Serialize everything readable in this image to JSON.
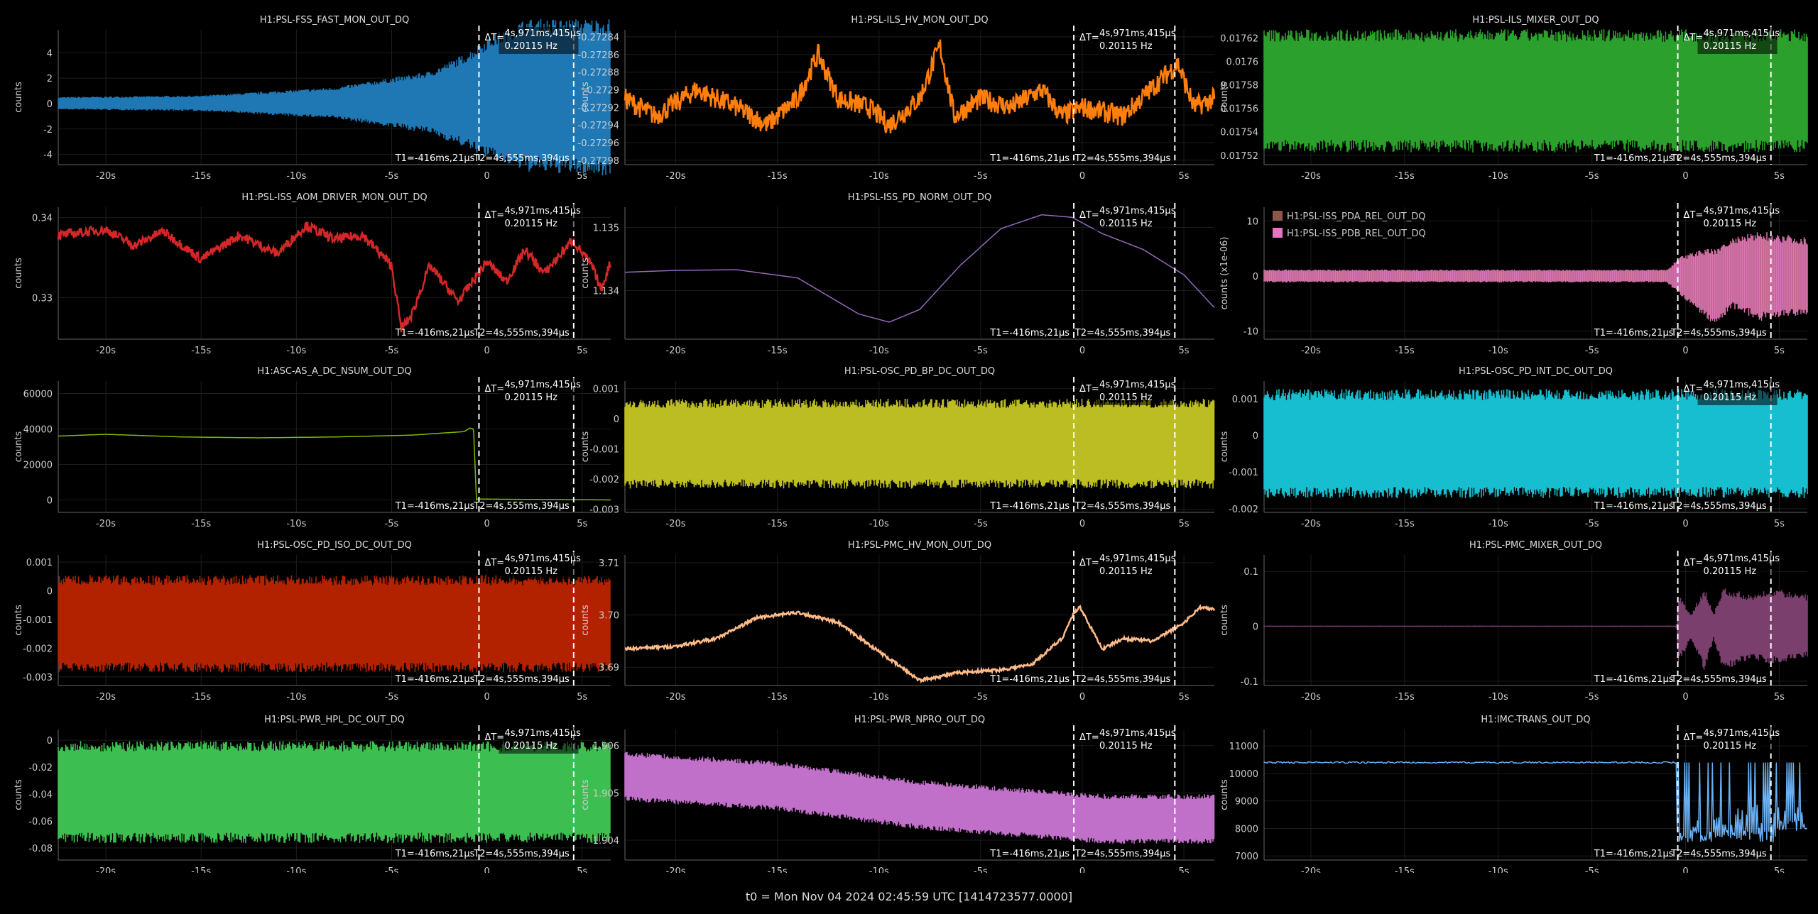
{
  "footer": "t0 = Mon Nov 04 2024 02:45:59 UTC [1414723577.0000]",
  "cursors": {
    "delta_label": "ΔT=",
    "delta_time": "4s,971ms,415μs",
    "delta_freq": "0.20115 Hz",
    "t1_label": "T1=-416ms,21μs",
    "t2_label": "T2=4s,555ms,394μs",
    "t1": -0.416,
    "t2": 4.555
  },
  "x_ticks": [
    "-20s",
    "-15s",
    "-10s",
    "-5s",
    "0",
    "5s"
  ],
  "chart_data": [
    {
      "type": "line",
      "title": "H1:PSL-FSS_FAST_MON_OUT_DQ",
      "ylabel": "counts",
      "color": "#1f77b4",
      "yticks": [
        "4",
        "2",
        "0",
        "-2",
        "-4"
      ],
      "ylim": [
        -4.8,
        5.8
      ],
      "xlim": [
        -22.5,
        6.5
      ],
      "envelope": [
        [
          -22.5,
          -0.4,
          0.45
        ],
        [
          -15,
          -0.5,
          0.55
        ],
        [
          -8,
          -1.0,
          1.1
        ],
        [
          -3,
          -2.0,
          2.2
        ],
        [
          -1,
          -3,
          3.5
        ],
        [
          0,
          -3.6,
          4.5
        ],
        [
          2,
          -4.5,
          5.8
        ],
        [
          6.5,
          -4.8,
          5.8
        ]
      ]
    },
    {
      "type": "line",
      "title": "H1:PSL-ILS_HV_MON_OUT_DQ",
      "ylabel": "counts",
      "color": "#ff7f0e",
      "yticks": [
        "-0.27284",
        "-0.27286",
        "-0.27288",
        "-0.2729",
        "-0.27292",
        "-0.27294",
        "-0.27296",
        "-0.27298"
      ],
      "ylim": [
        -0.272985,
        -0.272832
      ],
      "xlim": [
        -22.5,
        6.5
      ],
      "trace": [
        [
          -22.5,
          -0.27291
        ],
        [
          -21,
          -0.27293
        ],
        [
          -19,
          -0.2729
        ],
        [
          -17,
          -0.27292
        ],
        [
          -15.5,
          -0.27294
        ],
        [
          -14,
          -0.27291
        ],
        [
          -13,
          -0.27286
        ],
        [
          -12,
          -0.27291
        ],
        [
          -10.5,
          -0.27292
        ],
        [
          -9.5,
          -0.27294
        ],
        [
          -8,
          -0.27291
        ],
        [
          -7,
          -0.27285
        ],
        [
          -6.3,
          -0.27293
        ],
        [
          -5,
          -0.27291
        ],
        [
          -3.5,
          -0.27292
        ],
        [
          -2,
          -0.2729
        ],
        [
          -1,
          -0.27293
        ],
        [
          0,
          -0.27292
        ],
        [
          2,
          -0.27293
        ],
        [
          4.7,
          -0.27287
        ],
        [
          5.5,
          -0.27292
        ],
        [
          6.5,
          -0.27291
        ]
      ],
      "noise": 1.2e-05
    },
    {
      "type": "line",
      "title": "H1:PSL-ILS_MIXER_OUT_DQ",
      "ylabel": "counts",
      "color": "#2ca02c",
      "yticks": [
        "0.01762",
        "0.0176",
        "0.01758",
        "0.01756",
        "0.01754",
        "0.01752"
      ],
      "ylim": [
        0.017512,
        0.017627
      ],
      "envelope": [
        [
          -22.5,
          0.01753,
          0.01762
        ],
        [
          6.5,
          0.01753,
          0.01762
        ]
      ]
    },
    {
      "type": "line",
      "title": "H1:PSL-ISS_AOM_DRIVER_MON_OUT_DQ",
      "ylabel": "counts",
      "color": "#d62728",
      "yticks": [
        "0.34",
        "0.33"
      ],
      "ylim": [
        0.3248,
        0.3413
      ],
      "trace": [
        [
          -22.5,
          0.3378
        ],
        [
          -20,
          0.3385
        ],
        [
          -18.5,
          0.3365
        ],
        [
          -17,
          0.3383
        ],
        [
          -15,
          0.3348
        ],
        [
          -13,
          0.3378
        ],
        [
          -11,
          0.3355
        ],
        [
          -9.5,
          0.339
        ],
        [
          -8,
          0.3373
        ],
        [
          -6.5,
          0.3378
        ],
        [
          -5,
          0.334
        ],
        [
          -4.5,
          0.3262
        ],
        [
          -4,
          0.3275
        ],
        [
          -3,
          0.334
        ],
        [
          -1.5,
          0.3295
        ],
        [
          0,
          0.3345
        ],
        [
          1,
          0.332
        ],
        [
          2,
          0.336
        ],
        [
          3,
          0.333
        ],
        [
          4.5,
          0.3372
        ],
        [
          5.5,
          0.334
        ],
        [
          6,
          0.331
        ],
        [
          6.5,
          0.3345
        ]
      ],
      "noise": 0.0006
    },
    {
      "type": "line",
      "title": "H1:PSL-ISS_PD_NORM_OUT_DQ",
      "ylabel": "counts",
      "color": "#9467bd",
      "yticks": [
        "1.135",
        "1.134"
      ],
      "ylim": [
        1.13323,
        1.13532
      ],
      "trace": [
        [
          -22.5,
          1.13429
        ],
        [
          -20,
          1.13432
        ],
        [
          -17,
          1.13433
        ],
        [
          -14,
          1.1342
        ],
        [
          -11,
          1.13363
        ],
        [
          -9.5,
          1.1335
        ],
        [
          -8,
          1.1337
        ],
        [
          -6,
          1.1344
        ],
        [
          -4,
          1.13498
        ],
        [
          -2,
          1.1352
        ],
        [
          -0.5,
          1.13516
        ],
        [
          1,
          1.1349
        ],
        [
          3,
          1.13465
        ],
        [
          5,
          1.13425
        ],
        [
          6.5,
          1.13373
        ]
      ],
      "noise": 0
    },
    {
      "type": "line",
      "title": "",
      "ylabel": "counts (x1e-06)",
      "color": "#e377c2",
      "yticks": [
        "10",
        "0",
        "-10"
      ],
      "ylim": [
        -11.5,
        12.5
      ],
      "series": [
        {
          "name": "H1:PSL-ISS_PDA_REL_OUT_DQ",
          "color": "#8c564b"
        },
        {
          "name": "H1:PSL-ISS_PDB_REL_OUT_DQ",
          "color": "#e377c2"
        }
      ],
      "envelope": [
        [
          -22.5,
          -1,
          1
        ],
        [
          -1,
          -1,
          1
        ],
        [
          -0.3,
          -3,
          3
        ],
        [
          0.8,
          -6,
          4
        ],
        [
          1.5,
          -8,
          4
        ],
        [
          2.5,
          -5,
          6
        ],
        [
          4,
          -7,
          7
        ],
        [
          6.5,
          -6,
          6
        ]
      ]
    },
    {
      "type": "line",
      "title": "H1:ASC-AS_A_DC_NSUM_OUT_DQ",
      "ylabel": "counts",
      "color": "#7cb900",
      "yticks": [
        "60000",
        "40000",
        "20000",
        "0"
      ],
      "ylim": [
        -7000,
        67000
      ],
      "trace": [
        [
          -22.5,
          36000
        ],
        [
          -20,
          37000
        ],
        [
          -16,
          35500
        ],
        [
          -12,
          35000
        ],
        [
          -8,
          35500
        ],
        [
          -4,
          36500
        ],
        [
          -1.2,
          38500
        ],
        [
          -0.9,
          40500
        ],
        [
          -0.7,
          40000
        ],
        [
          -0.55,
          0
        ],
        [
          -0.5,
          500
        ],
        [
          6.5,
          0
        ]
      ],
      "noise": 0
    },
    {
      "type": "line",
      "title": "H1:PSL-OSC_PD_BP_DC_OUT_DQ",
      "ylabel": "counts",
      "color": "#bcbd22",
      "yticks": [
        "0.001",
        "0",
        "-0.001",
        "-0.002",
        "-0.003"
      ],
      "ylim": [
        -0.0031,
        0.00125
      ],
      "envelope": [
        [
          -22.5,
          -0.0021,
          0.00045
        ],
        [
          6.5,
          -0.0021,
          0.00045
        ]
      ]
    },
    {
      "type": "line",
      "title": "H1:PSL-OSC_PD_INT_DC_OUT_DQ",
      "ylabel": "counts",
      "color": "#17becf",
      "yticks": [
        "0.001",
        "0",
        "-0.001",
        "-0.002"
      ],
      "ylim": [
        -0.0021,
        0.00148
      ],
      "envelope": [
        [
          -22.5,
          -0.0015,
          0.00105
        ],
        [
          6.5,
          -0.0015,
          0.00105
        ]
      ]
    },
    {
      "type": "line",
      "title": "H1:PSL-OSC_PD_ISO_DC_OUT_DQ",
      "ylabel": "counts",
      "color": "#b22200",
      "yticks": [
        "0.001",
        "0",
        "-0.001",
        "-0.002",
        "-0.003"
      ],
      "ylim": [
        -0.0033,
        0.00125
      ],
      "envelope": [
        [
          -22.5,
          -0.0026,
          0.0003
        ],
        [
          6.5,
          -0.0026,
          0.0003
        ]
      ]
    },
    {
      "type": "line",
      "title": "H1:PSL-PMC_HV_MON_OUT_DQ",
      "ylabel": "counts",
      "color": "#ffbb88",
      "yticks": [
        "3.71",
        "3.70",
        "3.69"
      ],
      "ylim": [
        3.6865,
        3.7115
      ],
      "trace": [
        [
          -22.5,
          3.6935
        ],
        [
          -20,
          3.694
        ],
        [
          -18,
          3.6955
        ],
        [
          -16,
          3.6995
        ],
        [
          -14,
          3.7005
        ],
        [
          -12,
          3.6985
        ],
        [
          -10,
          3.693
        ],
        [
          -8,
          3.6875
        ],
        [
          -6,
          3.689
        ],
        [
          -4,
          3.6895
        ],
        [
          -2.5,
          3.6905
        ],
        [
          -1,
          3.6955
        ],
        [
          -0.4,
          3.7005
        ],
        [
          -0.1,
          3.7015
        ],
        [
          0.5,
          3.697
        ],
        [
          1,
          3.6935
        ],
        [
          2,
          3.6955
        ],
        [
          3.5,
          3.695
        ],
        [
          5,
          3.6985
        ],
        [
          5.8,
          3.7015
        ],
        [
          6.5,
          3.701
        ]
      ],
      "noise": 0.0003
    },
    {
      "type": "line",
      "title": "H1:PSL-PMC_MIXER_OUT_DQ",
      "ylabel": "counts",
      "color": "#7b3f6e",
      "yticks": [
        "0.1",
        "0",
        "-0.1"
      ],
      "ylim": [
        -0.108,
        0.13
      ],
      "envelope": [
        [
          -22.5,
          -0.001,
          0.001
        ],
        [
          -0.5,
          -0.001,
          0.001
        ],
        [
          -0.4,
          -0.06,
          0.05
        ],
        [
          0.3,
          -0.02,
          0.02
        ],
        [
          1,
          -0.07,
          0.06
        ],
        [
          1.5,
          -0.02,
          0.02
        ],
        [
          2,
          -0.07,
          0.06
        ],
        [
          3.5,
          -0.05,
          0.05
        ],
        [
          4.5,
          -0.06,
          0.06
        ],
        [
          6.5,
          -0.05,
          0.05
        ]
      ]
    },
    {
      "type": "line",
      "title": "H1:PSL-PWR_HPL_DC_OUT_DQ",
      "ylabel": "counts",
      "color": "#3cbf50",
      "yticks": [
        "0",
        "-0.02",
        "-0.04",
        "-0.06",
        "-0.08"
      ],
      "ylim": [
        -0.089,
        0.008
      ],
      "envelope": [
        [
          -22.5,
          -0.071,
          -0.006
        ],
        [
          6.5,
          -0.071,
          -0.006
        ]
      ]
    },
    {
      "type": "line",
      "title": "H1:PSL-PWR_NPRO_OUT_DQ",
      "ylabel": "counts",
      "color": "#c070c8",
      "yticks": [
        "1.906",
        "1.905",
        "1.904"
      ],
      "ylim": [
        1.90358,
        1.90634
      ],
      "envelope": [
        [
          -22.5,
          1.9049,
          1.9058
        ],
        [
          -15,
          1.9047,
          1.9056
        ],
        [
          -8,
          1.9043,
          1.9052
        ],
        [
          -2,
          1.9041,
          1.905
        ],
        [
          1,
          1.904,
          1.9049
        ],
        [
          6.5,
          1.904,
          1.9049
        ]
      ]
    },
    {
      "type": "line",
      "title": "H1:IMC-TRANS_OUT_DQ",
      "ylabel": "counts",
      "color": "#6ab0f2",
      "yticks": [
        "11000",
        "10000",
        "9000",
        "8000",
        "7000"
      ],
      "ylim": [
        6850,
        11600
      ],
      "spikes": true
    }
  ]
}
